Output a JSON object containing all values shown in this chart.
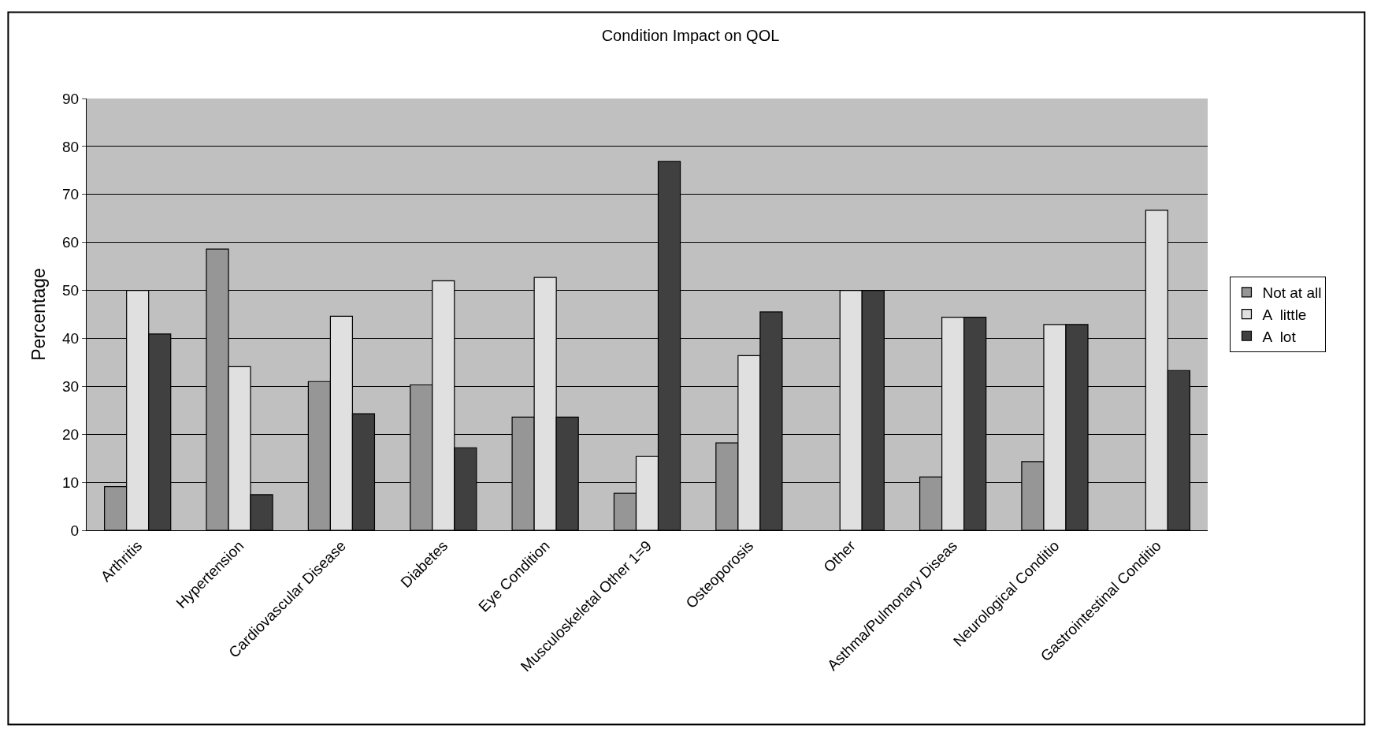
{
  "chart_data": {
    "type": "bar",
    "title": "Condition Impact on QOL",
    "ylabel": "Percentage",
    "categories": [
      "Arthritis",
      "Hypertension",
      "Cardiovascular Disease",
      "Diabetes",
      "Eye Condition",
      "Musculoskeletal Other 1=9",
      "Osteoporosis",
      "Other",
      "Asthma/Pulmonary Diseas",
      "Neurological Conditio",
      "Gastrointestinal Conditio"
    ],
    "series": [
      {
        "name": "Not at all",
        "color": "#969696",
        "values": [
          9.1,
          58.6,
          31.0,
          30.3,
          23.6,
          7.7,
          18.2,
          0,
          11.1,
          14.3,
          0
        ]
      },
      {
        "name": "A  little",
        "color": "#e0e0e0",
        "values": [
          50.0,
          34.1,
          44.6,
          52.0,
          52.7,
          15.4,
          36.4,
          50.0,
          44.4,
          42.9,
          66.7
        ]
      },
      {
        "name": "A  lot",
        "color": "#404040",
        "values": [
          40.9,
          7.4,
          24.3,
          17.2,
          23.6,
          76.9,
          45.5,
          50.0,
          44.4,
          42.9,
          33.3
        ]
      }
    ],
    "ylim": [
      0,
      90
    ],
    "yticks": [
      0,
      10,
      20,
      30,
      40,
      50,
      60,
      70,
      80,
      90
    ],
    "grid": "y",
    "legend": "right"
  }
}
